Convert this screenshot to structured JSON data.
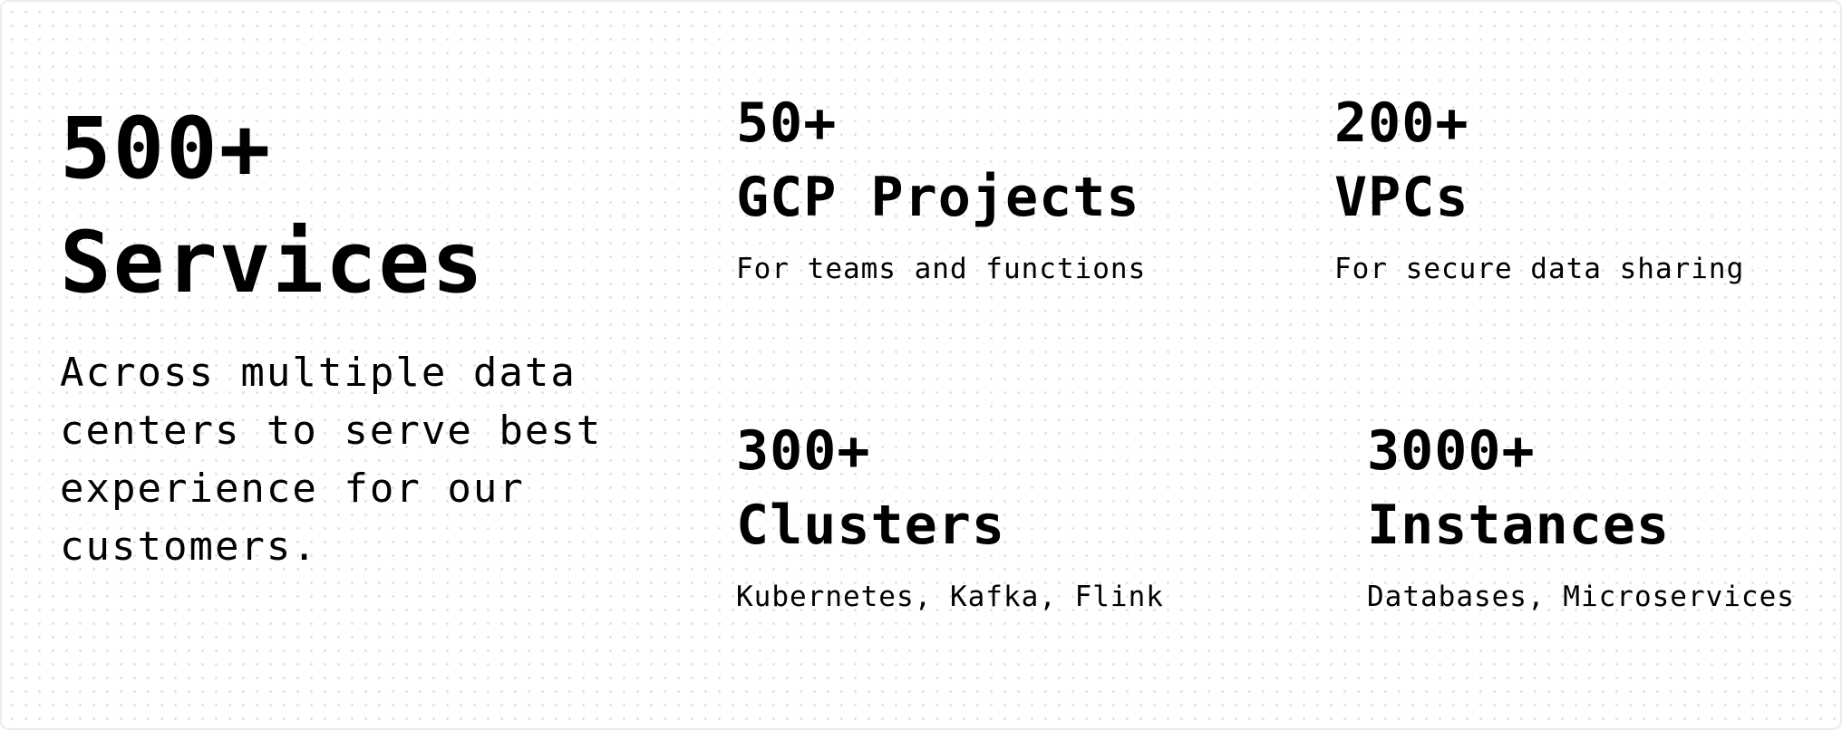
{
  "hero": {
    "number": "500+",
    "title": "Services",
    "description": "Across multiple data centers to serve best experience for our customers."
  },
  "stats": [
    {
      "number": "50+",
      "title": "GCP Projects",
      "description": "For teams and functions"
    },
    {
      "number": "200+",
      "title": "VPCs",
      "description": "For secure data sharing"
    },
    {
      "number": "300+",
      "title": "Clusters",
      "description": "Kubernetes, Kafka, Flink"
    },
    {
      "number": "3000+",
      "title": "Instances",
      "description": "Databases, Microservices"
    }
  ],
  "colors": {
    "background": "#ffffff",
    "text": "#000000",
    "border": "#ececec",
    "dot_grid": "#e2e2e2"
  }
}
